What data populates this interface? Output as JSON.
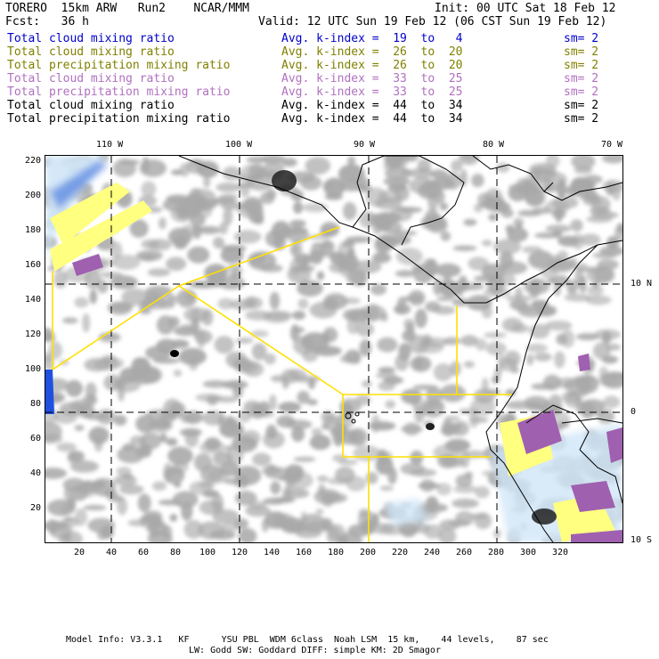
{
  "header": {
    "title_left": "TORERO  15km ARW   Run2    NCAR/MMM",
    "init": "Init: 00 UTC Sat 18 Feb 12",
    "fcst": "Fcst:   36 h",
    "valid": "Valid: 12 UTC Sun 19 Feb 12 (06 CST Sun 19 Feb 12)"
  },
  "fields": [
    {
      "name": "Total cloud mixing ratio",
      "kindex": "Avg. k-index =  19  to   4",
      "sm": "sm= 2",
      "color": "#0000cc"
    },
    {
      "name": "Total cloud mixing ratio",
      "kindex": "Avg. k-index =  26  to  20",
      "sm": "sm= 2",
      "color": "#808000"
    },
    {
      "name": "Total precipitation mixing ratio",
      "kindex": "Avg. k-index =  26  to  20",
      "sm": "sm= 2",
      "color": "#808000"
    },
    {
      "name": "Total cloud mixing ratio",
      "kindex": "Avg. k-index =  33  to  25",
      "sm": "sm= 2",
      "color": "#b070c0"
    },
    {
      "name": "Total precipitation mixing ratio",
      "kindex": "Avg. k-index =  33  to  25",
      "sm": "sm= 2",
      "color": "#b070c0"
    },
    {
      "name": "Total cloud mixing ratio",
      "kindex": "Avg. k-index =  44  to  34",
      "sm": "sm= 2",
      "color": "#000000"
    },
    {
      "name": "Total precipitation mixing ratio",
      "kindex": "Avg. k-index =  44  to  34",
      "sm": "sm= 2",
      "color": "#000000"
    }
  ],
  "map": {
    "lon_labels": [
      "110 W",
      "100 W",
      "90 W",
      "80 W",
      "70 W"
    ],
    "lat_labels": [
      "10 N",
      "0",
      "10 S"
    ],
    "x_ticks": [
      "20",
      "40",
      "60",
      "80",
      "100",
      "120",
      "140",
      "160",
      "180",
      "200",
      "220",
      "240",
      "260",
      "280",
      "300",
      "320"
    ],
    "y_ticks": [
      "220",
      "200",
      "180",
      "160",
      "140",
      "120",
      "100",
      "80",
      "60",
      "40",
      "20"
    ],
    "colors": {
      "cloud_gray": "#a8a8a8",
      "cloud_dark": "#5a5a5a",
      "boundary_yellow": "#ffe000",
      "light_blue": "#cfe6f7",
      "blue": "#3060e0",
      "yellow": "#ffff80",
      "purple": "#a060b0",
      "coast": "#000000"
    }
  },
  "footer": {
    "line1": "Model Info: V3.3.1   KF      YSU PBL  WDM 6class  Noah LSM  15 km,    44 levels,    87 sec",
    "line2": "LW: Godd SW: Goddard DIFF: simple KM: 2D Smagor"
  }
}
